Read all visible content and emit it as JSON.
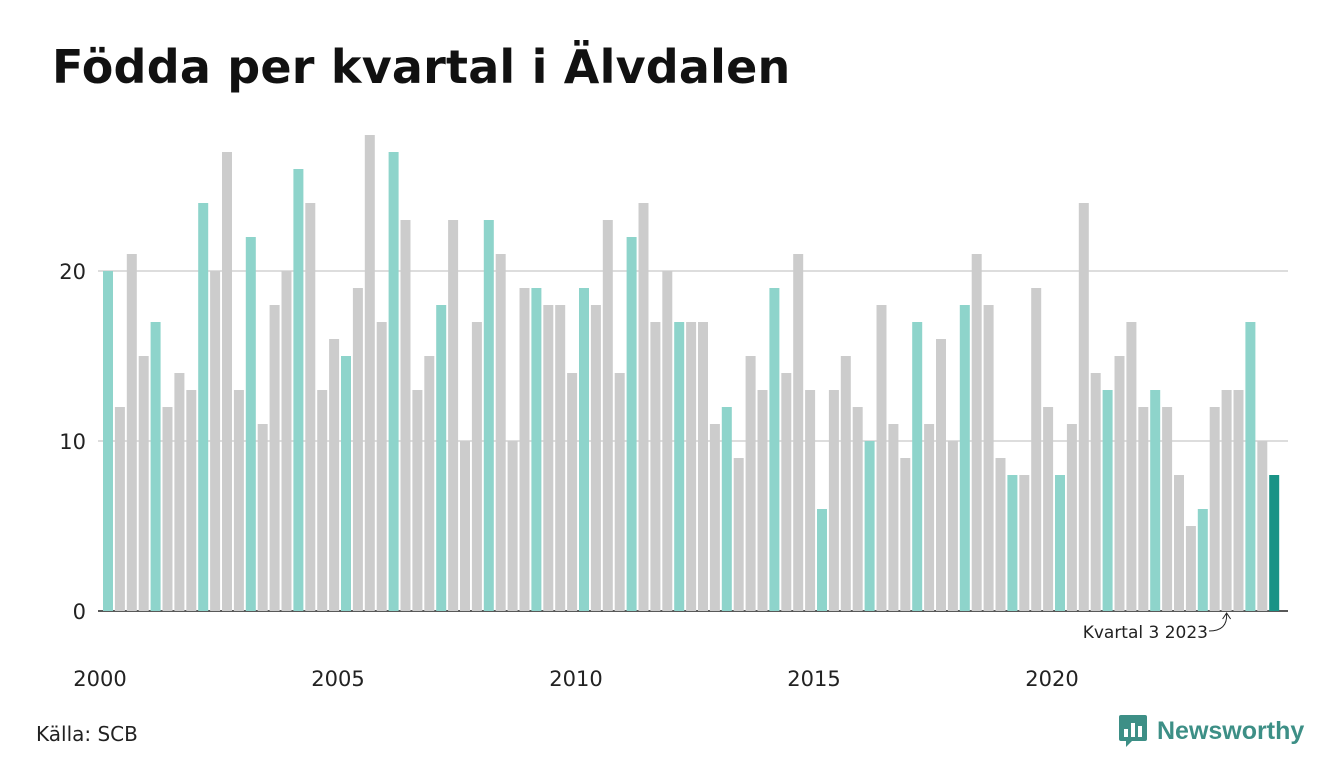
{
  "title": "Födda per kvartal i Älvdalen",
  "source": "Källa: SCB",
  "brand": {
    "name": "Newsworthy",
    "icon": "newsworthy-logo-icon",
    "color": "#3d8f86"
  },
  "colors": {
    "q1": "#8ed4cb",
    "other": "#cccccc",
    "latest": "#1a9386",
    "grid": "#dddddd",
    "axis": "#222222"
  },
  "chart_data": {
    "type": "bar",
    "title": "Födda per kvartal i Älvdalen",
    "xlabel": "",
    "ylabel": "",
    "ylim": [
      0,
      28
    ],
    "y_ticks": [
      0,
      10,
      20
    ],
    "x_tick_labels": [
      "2000",
      "2005",
      "2010",
      "2015",
      "2020"
    ],
    "start": "2000 Q1",
    "highlight": "Q1 bars shown in teal, latest quarter in dark teal",
    "values": [
      20,
      12,
      21,
      15,
      17,
      12,
      14,
      13,
      24,
      20,
      27,
      13,
      22,
      11,
      18,
      20,
      26,
      24,
      13,
      16,
      15,
      19,
      28,
      17,
      27,
      23,
      13,
      15,
      18,
      23,
      10,
      17,
      23,
      21,
      10,
      19,
      19,
      18,
      18,
      14,
      19,
      18,
      23,
      14,
      22,
      24,
      17,
      20,
      17,
      17,
      17,
      11,
      12,
      9,
      15,
      13,
      19,
      14,
      21,
      13,
      6,
      13,
      15,
      12,
      10,
      18,
      11,
      9,
      17,
      11,
      16,
      10,
      18,
      21,
      18,
      9,
      8,
      8,
      19,
      12,
      8,
      11,
      24,
      14,
      13,
      15,
      17,
      12,
      13,
      12,
      8,
      5,
      6,
      12,
      13,
      13,
      17,
      10,
      8
    ],
    "annotation": {
      "label": "Kvartal 3 2023"
    }
  }
}
